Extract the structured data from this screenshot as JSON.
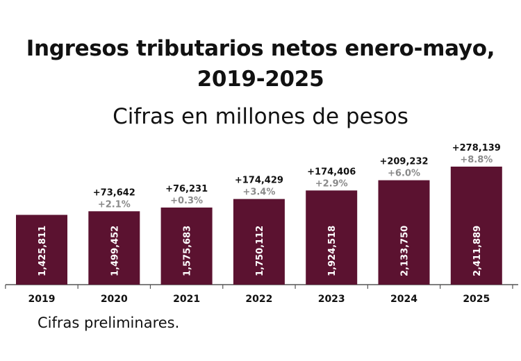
{
  "title_line1": "Ingresos tributarios netos enero-mayo,",
  "title_line2": "2019-2025",
  "subtitle": "Cifras en millones de pesos",
  "note": "Cifras preliminares.",
  "colors": {
    "bar": "#5b1230",
    "bar_value_text": "#ffffff",
    "diff_text": "#111111",
    "pct_text": "#8a8a8a",
    "axis": "#555555"
  },
  "chart_data": {
    "type": "bar",
    "title": "Ingresos tributarios netos enero-mayo, 2019-2025",
    "subtitle": "Cifras en millones de pesos",
    "categories": [
      "2019",
      "2020",
      "2021",
      "2022",
      "2023",
      "2024",
      "2025"
    ],
    "values": [
      1425811,
      1499452,
      1575683,
      1750112,
      1924518,
      2133750,
      2411889
    ],
    "value_labels": [
      "1,425,811",
      "1,499,452",
      "1,575,683",
      "1,750,112",
      "1,924,518",
      "2,133,750",
      "2,411,889"
    ],
    "diff_labels": [
      "",
      "+73,642",
      "+76,231",
      "+174,429",
      "+174,406",
      "+209,232",
      "+278,139"
    ],
    "pct_labels": [
      "",
      "+2.1%",
      "+0.3%",
      "+3.4%",
      "+2.9%",
      "+6.0%",
      "+8.8%"
    ],
    "xlabel": "",
    "ylabel": "",
    "ylim": [
      0,
      2411889
    ],
    "grid": false,
    "legend": "none"
  }
}
